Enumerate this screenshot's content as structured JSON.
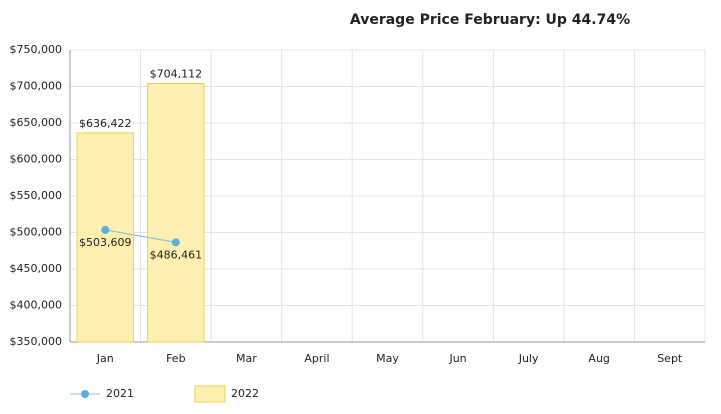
{
  "chart_data": {
    "type": "bar",
    "title": "Average Price February: Up 44.74%",
    "categories": [
      "Jan",
      "Feb",
      "Mar",
      "April",
      "May",
      "Jun",
      "July",
      "Aug",
      "Sept"
    ],
    "series": [
      {
        "name": "2021",
        "type": "line",
        "color": "#5bb0dc",
        "values": [
          503609,
          486461,
          null,
          null,
          null,
          null,
          null,
          null,
          null
        ],
        "value_labels": [
          "$503,609",
          "$486,461",
          null,
          null,
          null,
          null,
          null,
          null,
          null
        ]
      },
      {
        "name": "2022",
        "type": "bar",
        "color": "#fdf0b0",
        "values": [
          636422,
          704112,
          null,
          null,
          null,
          null,
          null,
          null,
          null
        ],
        "value_labels": [
          "$636,422",
          "$704,112",
          null,
          null,
          null,
          null,
          null,
          null,
          null
        ]
      }
    ],
    "ylim": [
      350000,
      750000
    ],
    "yticks": [
      {
        "value": 350000,
        "label": "$350,000"
      },
      {
        "value": 400000,
        "label": "$400,000"
      },
      {
        "value": 450000,
        "label": "$450,000"
      },
      {
        "value": 500000,
        "label": "$500,000"
      },
      {
        "value": 550000,
        "label": "$550,000"
      },
      {
        "value": 600000,
        "label": "$600,000"
      },
      {
        "value": 650000,
        "label": "$650,000"
      },
      {
        "value": 700000,
        "label": "$700,000"
      },
      {
        "value": 750000,
        "label": "$750,000"
      }
    ],
    "grid": true,
    "legend": "bottom"
  }
}
